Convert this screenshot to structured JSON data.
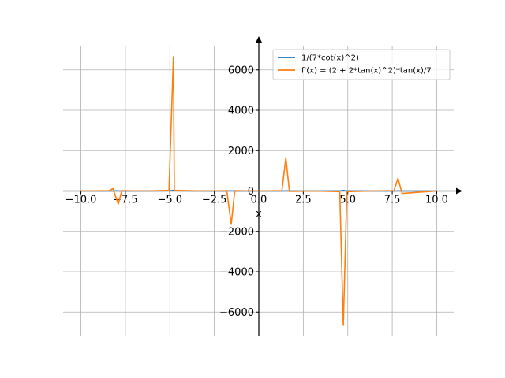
{
  "chart_data": {
    "type": "line",
    "title": "",
    "xlabel": "x",
    "ylabel": "",
    "xlim": [
      -11.0,
      11.0
    ],
    "ylim": [
      -7200,
      7200
    ],
    "grid": true,
    "legend_position": "top-right",
    "x_ticks": [
      -10.0,
      -7.5,
      -5.0,
      -2.5,
      0.0,
      2.5,
      5.0,
      7.5,
      10.0
    ],
    "x_tick_labels": [
      "−10.0",
      "−7.5",
      "−5.0",
      "−2.5",
      "0.0",
      "2.5",
      "5.0",
      "7.5",
      "10.0"
    ],
    "y_ticks": [
      -6000,
      -4000,
      -2000,
      0,
      2000,
      4000,
      6000
    ],
    "y_tick_labels": [
      "−6000",
      "−4000",
      "−2000",
      "0",
      "2000",
      "4000",
      "6000"
    ],
    "series": [
      {
        "name": "1/(7*cot(x)^2)",
        "color": "#1f77b4",
        "x": [
          -10.0,
          -8.2,
          -8.0,
          -7.8,
          -6.3,
          -5.0,
          -4.8,
          -4.6,
          -3.5,
          -1.8,
          -1.57,
          -1.4,
          0.0,
          1.4,
          1.57,
          1.8,
          3.2,
          4.6,
          4.75,
          4.9,
          6.3,
          7.7,
          7.85,
          8.0,
          10.0
        ],
        "y": [
          0,
          0,
          10,
          0,
          0,
          10,
          30,
          10,
          0,
          0,
          10,
          0,
          0,
          0,
          10,
          0,
          0,
          10,
          30,
          10,
          0,
          0,
          10,
          0,
          0
        ]
      },
      {
        "name": "f'(x) = (2 + 2*tan(x)^2)*tan(x)/7",
        "color": "#ff7f0e",
        "x": [
          -10.0,
          -8.4,
          -8.2,
          -7.9,
          -7.7,
          -6.3,
          -5.05,
          -4.8,
          -4.75,
          -3.2,
          -1.8,
          -1.55,
          -1.35,
          0.0,
          1.3,
          1.52,
          1.72,
          3.2,
          4.55,
          4.75,
          4.95,
          6.3,
          7.6,
          7.82,
          8.05,
          10.0
        ],
        "y": [
          0,
          20,
          120,
          -650,
          20,
          0,
          30,
          6650,
          30,
          0,
          20,
          -1650,
          20,
          0,
          20,
          1650,
          -20,
          0,
          -30,
          -6650,
          -30,
          0,
          20,
          630,
          -120,
          0
        ]
      }
    ]
  }
}
